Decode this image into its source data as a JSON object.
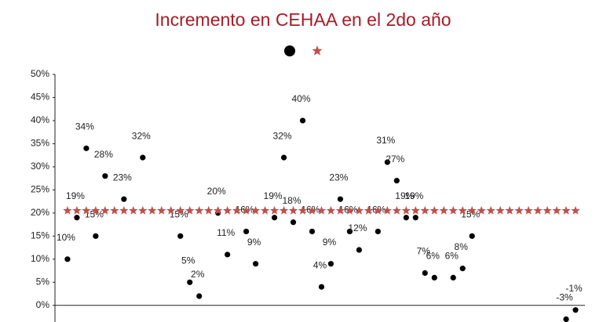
{
  "chart_data": {
    "type": "scatter",
    "title": "Incremento en CEHAA en el 2do año",
    "xlim": [
      -1.33,
      55
    ],
    "ylim": [
      -3.6,
      50
    ],
    "yticks": [
      {
        "value": 0,
        "label": "0%"
      },
      {
        "value": 5,
        "label": "5%"
      },
      {
        "value": 10,
        "label": "10%"
      },
      {
        "value": 15,
        "label": "15%"
      },
      {
        "value": 20,
        "label": "20%"
      },
      {
        "value": 25,
        "label": "25%"
      },
      {
        "value": 30,
        "label": "30%"
      },
      {
        "value": 35,
        "label": "35%"
      },
      {
        "value": 40,
        "label": "40%"
      },
      {
        "value": 45,
        "label": "45%"
      },
      {
        "value": 50,
        "label": "50%"
      }
    ],
    "series": [
      {
        "color": "#000000",
        "marker": "circle",
        "x": [
          0,
          1,
          2,
          3,
          4,
          6,
          8,
          12,
          13,
          14,
          16,
          17,
          19,
          20,
          22,
          23,
          24,
          25,
          26,
          27,
          28,
          29,
          30,
          31,
          33,
          34,
          35,
          36,
          37,
          38,
          39,
          41,
          42,
          43,
          53,
          54
        ],
        "values": [
          10,
          19,
          34,
          15,
          28,
          23,
          32,
          15,
          5,
          2,
          20,
          11,
          16,
          9,
          19,
          32,
          18,
          40,
          16,
          4,
          9,
          23,
          16,
          12,
          16,
          31,
          27,
          19,
          19,
          7,
          6,
          6,
          8,
          15,
          -3,
          -1
        ],
        "value_labels": [
          "10%",
          "19%",
          "34%",
          "15%",
          "28%",
          "23%",
          "32%",
          "15%",
          "5%",
          "2%",
          "20%",
          "11%",
          "16%",
          "9%",
          "19%",
          "32%",
          "18%",
          "40%",
          "16%",
          "4%",
          "9%",
          "23%",
          "16%",
          "12%",
          "16%",
          "31%",
          "27%",
          "19%",
          "19%",
          "7%",
          "6%",
          "6%",
          "8%",
          "15%",
          "-3%",
          "-1%"
        ]
      },
      {
        "color": "#c0504d",
        "marker": "star",
        "x": [
          0,
          1,
          2,
          3,
          4,
          5,
          6,
          7,
          8,
          9,
          10,
          11,
          12,
          13,
          14,
          15,
          16,
          17,
          18,
          19,
          20,
          21,
          22,
          23,
          24,
          25,
          26,
          27,
          28,
          29,
          30,
          31,
          32,
          33,
          34,
          35,
          36,
          37,
          38,
          39,
          40,
          41,
          42,
          43,
          44,
          45,
          46,
          47,
          48,
          49,
          50,
          51,
          52,
          53,
          54
        ],
        "values": [
          20.5,
          20.5,
          20.5,
          20.5,
          20.5,
          20.5,
          20.5,
          20.5,
          20.5,
          20.5,
          20.5,
          20.5,
          20.5,
          20.5,
          20.5,
          20.5,
          20.5,
          20.5,
          20.5,
          20.5,
          20.5,
          20.5,
          20.5,
          20.5,
          20.5,
          20.5,
          20.5,
          20.5,
          20.5,
          20.5,
          20.5,
          20.5,
          20.5,
          20.5,
          20.5,
          20.5,
          20.5,
          20.5,
          20.5,
          20.5,
          20.5,
          20.5,
          20.5,
          20.5,
          20.5,
          20.5,
          20.5,
          20.5,
          20.5,
          20.5,
          20.5,
          20.5,
          20.5,
          20.5,
          20.5
        ]
      }
    ]
  }
}
